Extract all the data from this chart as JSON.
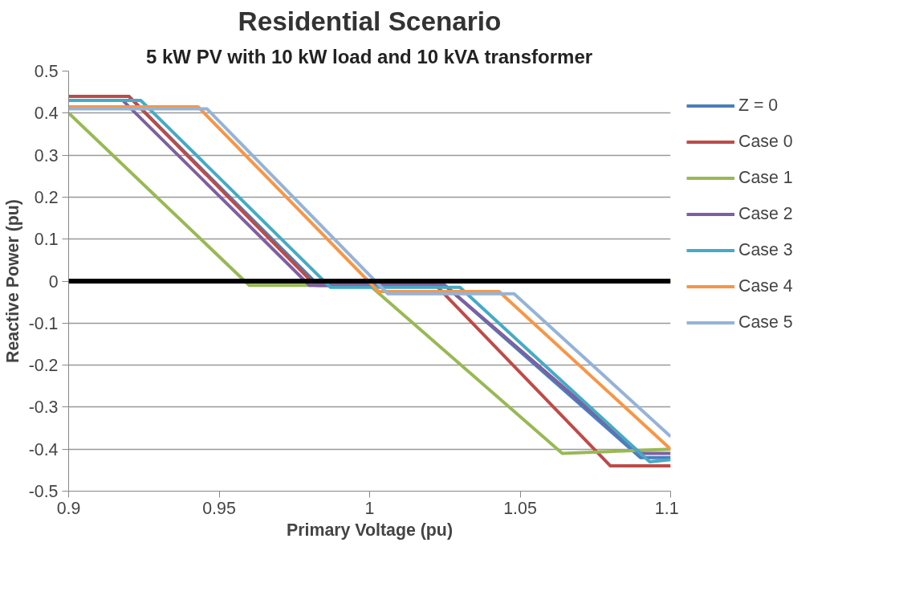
{
  "chart_data": {
    "type": "line",
    "title": "Residential Scenario",
    "subtitle": "5 kW PV with 10 kW load and 10 kVA transformer",
    "xlabel": "Primary Voltage (pu)",
    "ylabel": "Reactive Power (pu)",
    "xlim": [
      0.9,
      1.1
    ],
    "xticks": [
      0.9,
      0.95,
      1,
      1.05,
      1.1
    ],
    "ylim": [
      -0.5,
      0.5
    ],
    "yticks": [
      -0.5,
      -0.4,
      -0.3,
      -0.2,
      -0.1,
      0,
      0.1,
      0.2,
      0.3,
      0.4,
      0.5
    ],
    "grid": "y",
    "legend": "right",
    "marker": "none",
    "line_style": "solid",
    "ref_lines": [
      {
        "axis": "y",
        "value": 0,
        "label": null,
        "color": "#000000"
      }
    ],
    "series": [
      {
        "name": "Z = 0",
        "color": "#4a7ebb",
        "x": [
          0.9,
          0.92,
          0.983,
          1.025,
          1.09,
          1.1
        ],
        "values": [
          0.44,
          0.44,
          -0.01,
          -0.01,
          -0.42,
          -0.42
        ]
      },
      {
        "name": "Case 0",
        "color": "#be4b48",
        "x": [
          0.9,
          0.92,
          0.982,
          1.022,
          1.08,
          1.1
        ],
        "values": [
          0.44,
          0.44,
          -0.01,
          -0.01,
          -0.44,
          -0.44
        ]
      },
      {
        "name": "Case 1",
        "color": "#98b954",
        "x": [
          0.9,
          0.96,
          1.0,
          1.064,
          1.1
        ],
        "values": [
          0.4,
          -0.01,
          -0.01,
          -0.41,
          -0.4
        ]
      },
      {
        "name": "Case 2",
        "color": "#7d60a0",
        "x": [
          0.9,
          0.918,
          0.98,
          1.025,
          1.09,
          1.1
        ],
        "values": [
          0.43,
          0.43,
          -0.01,
          -0.01,
          -0.41,
          -0.41
        ]
      },
      {
        "name": "Case 3",
        "color": "#46aac5",
        "x": [
          0.9,
          0.924,
          0.987,
          1.03,
          1.093,
          1.1
        ],
        "values": [
          0.43,
          0.43,
          -0.015,
          -0.015,
          -0.43,
          -0.425
        ]
      },
      {
        "name": "Case 4",
        "color": "#f79646",
        "x": [
          0.9,
          0.943,
          1.003,
          1.043,
          1.1
        ],
        "values": [
          0.415,
          0.415,
          -0.025,
          -0.025,
          -0.4
        ]
      },
      {
        "name": "Case 5",
        "color": "#95b3d7",
        "x": [
          0.9,
          0.946,
          1.006,
          1.048,
          1.1
        ],
        "values": [
          0.41,
          0.41,
          -0.03,
          -0.03,
          -0.37
        ]
      }
    ]
  }
}
